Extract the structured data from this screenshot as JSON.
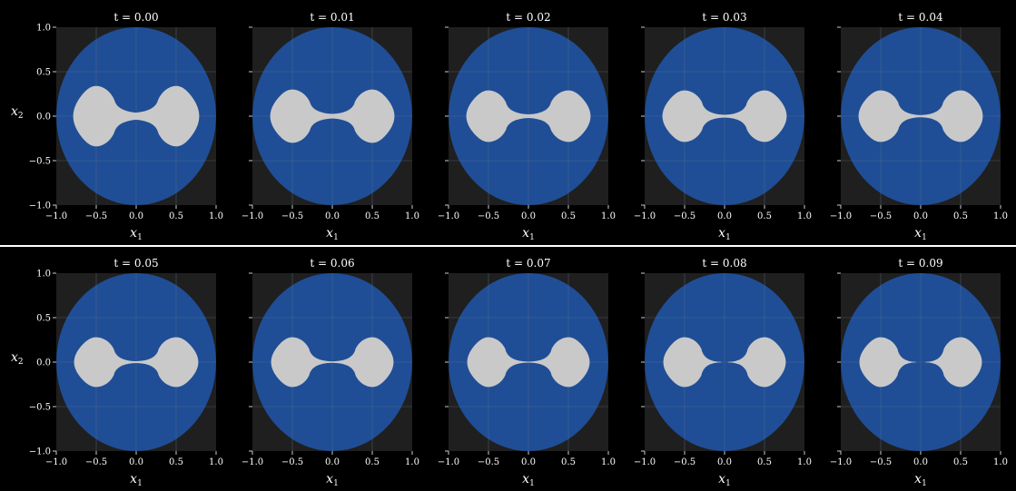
{
  "colors": {
    "background": "#000000",
    "plot_face": "#1f1f1f",
    "disk": "#1f4e96",
    "shape": "#c9c9c9",
    "grid": "#5a6c8a",
    "text": "#ffffff",
    "separator": "#ffffff"
  },
  "chart_data": [
    {
      "type": "area",
      "row": 1,
      "title_prefix": "t = ",
      "xlabel": "x",
      "xlabel_subscript": "1",
      "ylabel": "x",
      "ylabel_subscript": "2",
      "xlim": [
        -1.0,
        1.0
      ],
      "ylim": [
        -1.0,
        1.0
      ],
      "xticks": [
        "−1.0",
        "−0.5",
        "0.0",
        "0.5",
        "1.0"
      ],
      "yticks": [
        "−1.0",
        "−0.5",
        "0.0",
        "0.5",
        "1.0"
      ],
      "grid": true,
      "disk_radius": 1.0,
      "panels": [
        {
          "t": "0.00",
          "lobe_center": 0.5,
          "lobe_rx": 0.26,
          "lobe_ry": 0.34,
          "neck_half_width": 0.04,
          "neck_gap": 0.0
        },
        {
          "t": "0.01",
          "lobe_center": 0.5,
          "lobe_rx": 0.25,
          "lobe_ry": 0.3,
          "neck_half_width": 0.025,
          "neck_gap": 0.0
        },
        {
          "t": "0.02",
          "lobe_center": 0.5,
          "lobe_rx": 0.25,
          "lobe_ry": 0.29,
          "neck_half_width": 0.02,
          "neck_gap": 0.0
        },
        {
          "t": "0.03",
          "lobe_center": 0.5,
          "lobe_rx": 0.25,
          "lobe_ry": 0.29,
          "neck_half_width": 0.015,
          "neck_gap": 0.0
        },
        {
          "t": "0.04",
          "lobe_center": 0.5,
          "lobe_rx": 0.25,
          "lobe_ry": 0.29,
          "neck_half_width": 0.012,
          "neck_gap": 0.0
        }
      ]
    },
    {
      "type": "area",
      "row": 2,
      "title_prefix": "t = ",
      "xlabel": "x",
      "xlabel_subscript": "1",
      "ylabel": "x",
      "ylabel_subscript": "2",
      "xlim": [
        -1.0,
        1.0
      ],
      "ylim": [
        -1.0,
        1.0
      ],
      "xticks": [
        "−1.0",
        "−0.5",
        "0.0",
        "0.5",
        "1.0"
      ],
      "yticks": [
        "−1.0",
        "−0.5",
        "0.0",
        "0.5",
        "1.0"
      ],
      "grid": true,
      "disk_radius": 1.0,
      "panels": [
        {
          "t": "0.05",
          "lobe_center": 0.5,
          "lobe_rx": 0.25,
          "lobe_ry": 0.28,
          "neck_half_width": 0.01,
          "neck_gap": 0.0
        },
        {
          "t": "0.06",
          "lobe_center": 0.5,
          "lobe_rx": 0.24,
          "lobe_ry": 0.28,
          "neck_half_width": 0.008,
          "neck_gap": 0.0
        },
        {
          "t": "0.07",
          "lobe_center": 0.5,
          "lobe_rx": 0.24,
          "lobe_ry": 0.28,
          "neck_half_width": 0.005,
          "neck_gap": 0.03
        },
        {
          "t": "0.08",
          "lobe_center": 0.5,
          "lobe_rx": 0.24,
          "lobe_ry": 0.28,
          "neck_half_width": 0.0,
          "neck_gap": 0.08
        },
        {
          "t": "0.09",
          "lobe_center": 0.5,
          "lobe_rx": 0.24,
          "lobe_ry": 0.28,
          "neck_half_width": 0.0,
          "neck_gap": 0.12
        }
      ]
    }
  ]
}
